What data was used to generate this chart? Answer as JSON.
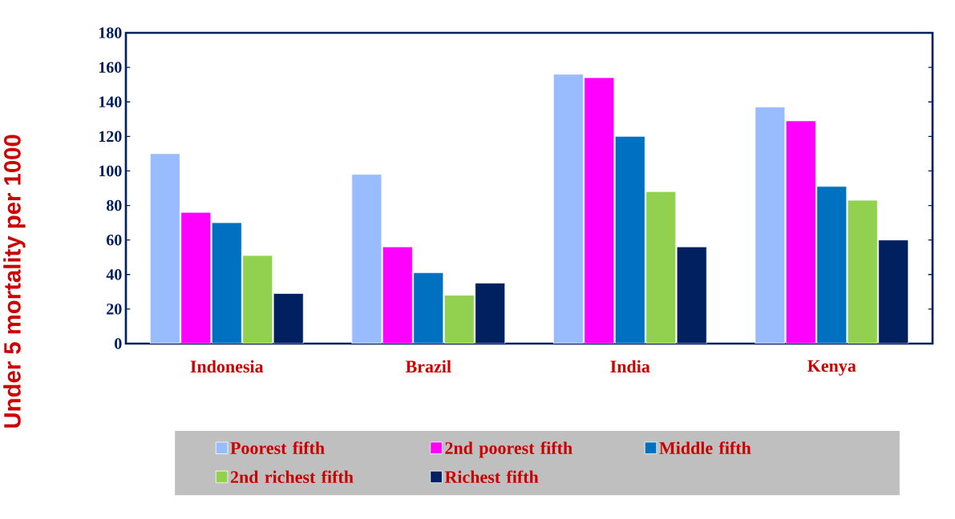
{
  "chart_data": {
    "type": "bar",
    "ylabel": "Under 5 mortality per 1000",
    "categories": [
      "Indonesia",
      "Brazil",
      "India",
      "Kenya"
    ],
    "series": [
      {
        "name": "Poorest fifth",
        "color": "#99bbff",
        "values": [
          110,
          98,
          156,
          137
        ]
      },
      {
        "name": "2nd poorest fifth",
        "color": "#ff00ff",
        "values": [
          76,
          56,
          154,
          129
        ]
      },
      {
        "name": "Middle fifth",
        "color": "#0070c0",
        "values": [
          70,
          41,
          120,
          91
        ]
      },
      {
        "name": "2nd richest fifth",
        "color": "#92d050",
        "values": [
          51,
          28,
          88,
          83
        ]
      },
      {
        "name": "Richest fifth",
        "color": "#002060",
        "values": [
          29,
          35,
          56,
          60
        ]
      }
    ],
    "ylim": [
      0,
      180
    ],
    "yticks": [
      0,
      20,
      40,
      60,
      80,
      100,
      120,
      140,
      160,
      180
    ],
    "legend": "bottom"
  }
}
